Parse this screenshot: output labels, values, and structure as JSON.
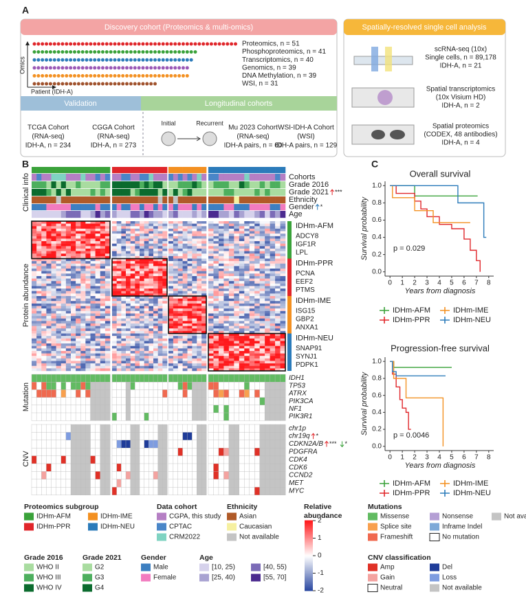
{
  "panel_labels": [
    "A",
    "B",
    "C"
  ],
  "discovery": {
    "title": "Discovery cohort (Proteomics & multi-omics)",
    "y_label": "Omics",
    "x_label": "Patient (IDH-A)",
    "rows": [
      {
        "label": "Proteomics, n = 51",
        "n": 51,
        "color": "#e0262a"
      },
      {
        "label": "Phosphoproteomics, n = 41",
        "n": 41,
        "color": "#3aa23a"
      },
      {
        "label": "Transcriptomics, n = 40",
        "n": 40,
        "color": "#2b7bba"
      },
      {
        "label": "Genomics, n = 39",
        "n": 39,
        "color": "#9b59b6"
      },
      {
        "label": "DNA Methylation, n = 39",
        "n": 39,
        "color": "#f39021"
      },
      {
        "label": "WSI, n = 31",
        "n": 31,
        "color": "#a0522d"
      }
    ]
  },
  "validation": {
    "title": "Validation",
    "cohorts": [
      [
        "TCGA Cohort",
        "(RNA-seq)",
        "IDH-A, n = 234"
      ],
      [
        "CGGA Cohort",
        "(RNA-seq)",
        "IDH-A, n = 273"
      ]
    ]
  },
  "longitudinal": {
    "title": "Longitudinal cohorts",
    "initial": "Initial",
    "recurrent": "Recurrent",
    "cohorts": [
      [
        "Mu 2023 Cohort",
        "(RNA-seq)",
        "IDH-A pairs, n = 60"
      ],
      [
        "WSI-IDH-A Cohort",
        "(WSI)",
        "IDH-A pairs, n = 129"
      ]
    ]
  },
  "spatial": {
    "title": "Spatially-resolved single cell analysis",
    "entries": [
      [
        "scRNA-seq (10x)",
        "Single cells, n = 89,178",
        "IDH-A, n = 21"
      ],
      [
        "Spatial transcriptomics",
        "(10x Visium HD)",
        "IDH-A, n = 2"
      ],
      [
        "Spatial proteomics",
        "(CODEX, 48 antibodies)",
        "IDH-A, n = 4"
      ]
    ]
  },
  "panel_b": {
    "clinical_title": "Clinical info",
    "protein_title": "Protein abundance",
    "mutation_title": "Mutation",
    "cnv_title": "CNV",
    "tracks": [
      {
        "label": "Cohorts"
      },
      {
        "label": "Grade 2016"
      },
      {
        "label": "Grade 2021",
        "up": "***",
        "up_color": "#e0262a"
      },
      {
        "label": "Ethnicity"
      },
      {
        "label": "Gender",
        "up": "*",
        "up_color": "#2b7bba"
      },
      {
        "label": "Age"
      }
    ],
    "subgroups": [
      {
        "name": "IDHm-AFM",
        "color": "#3aa23a",
        "genes": [
          "ADCY8",
          "IGF1R",
          "LPL"
        ]
      },
      {
        "name": "IDHm-PPR",
        "color": "#e0262a",
        "genes": [
          "PCNA",
          "EEF2",
          "PTMS"
        ]
      },
      {
        "name": "IDHm-IME",
        "color": "#f39021",
        "genes": [
          "ISG15",
          "GBP2",
          "ANXA1"
        ]
      },
      {
        "name": "IDHm-NEU",
        "color": "#2b7bba",
        "genes": [
          "SNAP91",
          "SYNJ1",
          "PDPK1"
        ]
      }
    ],
    "mutations": [
      {
        "label": "IDH1"
      },
      {
        "label": "TP53"
      },
      {
        "label": "ATRX"
      },
      {
        "label": "PIK3CA"
      },
      {
        "label": "NF1"
      },
      {
        "label": "PIK3R1"
      }
    ],
    "cnv": [
      {
        "label": "chr1p"
      },
      {
        "label": "chr19q",
        "up": "*",
        "up_color": "#e0262a"
      },
      {
        "label": "CDKN2A/B",
        "up": "***",
        "up_color": "#e0262a",
        "down": "*",
        "down_color": "#3aa23a"
      },
      {
        "label": "PDGFRA"
      },
      {
        "label": "CDK4"
      },
      {
        "label": "CDK6"
      },
      {
        "label": "CCND2"
      },
      {
        "label": "MET"
      },
      {
        "label": "MYC"
      }
    ]
  },
  "colorbar": {
    "title": [
      "Relative",
      "abundance"
    ],
    "ticks": [
      2,
      1,
      0,
      -1,
      -2
    ]
  },
  "legends": [
    {
      "title": "Proteomics subgroup",
      "items": [
        {
          "label": "IDHm-AFM",
          "color": "#3aa23a"
        },
        {
          "label": "IDHm-PPR",
          "color": "#e0262a"
        },
        {
          "label": "IDHm-IME",
          "color": "#f39021"
        },
        {
          "label": "IDHm-NEU",
          "color": "#2b7bba"
        }
      ]
    },
    {
      "title": "Data cohort",
      "items": [
        {
          "label": "CGPA, this study",
          "color": "#b57fc4"
        },
        {
          "label": "CPTAC",
          "color": "#4a86c8"
        },
        {
          "label": "CRM2022",
          "color": "#7fd3c2"
        }
      ]
    },
    {
      "title": "Ethnicity",
      "items": [
        {
          "label": "Asian",
          "color": "#b05a28"
        },
        {
          "label": "Caucasian",
          "color": "#f6f0a0"
        },
        {
          "label": "Not available",
          "color": "#c4c4c4"
        }
      ]
    },
    {
      "title": "Mutations",
      "items": [
        {
          "label": "Missense",
          "color": "#62bb62"
        },
        {
          "label": "Splice site",
          "color": "#f8a04e"
        },
        {
          "label": "Frameshift",
          "color": "#f0694f"
        },
        {
          "label": "Nonsense",
          "color": "#b49fd4"
        },
        {
          "label": "Inframe Indel",
          "color": "#7ea9d8"
        },
        {
          "label": "No mutation",
          "color": "#ffffff"
        },
        {
          "label": "Not available",
          "color": "#c4c4c4"
        }
      ]
    },
    {
      "title": "Grade 2016",
      "items": [
        {
          "label": "WHO II",
          "color": "#a9dca0"
        },
        {
          "label": "WHO III",
          "color": "#4daf5e"
        },
        {
          "label": "WHO IV",
          "color": "#0b6b2e"
        }
      ]
    },
    {
      "title": "Grade 2021",
      "items": [
        {
          "label": "G2",
          "color": "#a9dca0"
        },
        {
          "label": "G3",
          "color": "#4daf5e"
        },
        {
          "label": "G4",
          "color": "#0b6b2e"
        }
      ]
    },
    {
      "title": "Gender",
      "items": [
        {
          "label": "Male",
          "color": "#3d7fc1"
        },
        {
          "label": "Female",
          "color": "#f27bbf"
        }
      ]
    },
    {
      "title": "Age",
      "items": [
        {
          "label": "[10, 25)",
          "color": "#d6d2ec"
        },
        {
          "label": "[25, 40)",
          "color": "#a9a3d2"
        },
        {
          "label": "[40, 55)",
          "color": "#7b6bb7"
        },
        {
          "label": "[55, 70]",
          "color": "#4b2a8f"
        }
      ]
    },
    {
      "title": "CNV classification",
      "items": [
        {
          "label": "Amp",
          "color": "#e03127"
        },
        {
          "label": "Gain",
          "color": "#f4a3a0"
        },
        {
          "label": "Neutral",
          "color": "#ffffff"
        },
        {
          "label": "Del",
          "color": "#1f3c99"
        },
        {
          "label": "Loss",
          "color": "#7e9ce0"
        },
        {
          "label": "Not available",
          "color": "#c4c4c4"
        }
      ]
    }
  ],
  "chart_data": [
    {
      "type": "line",
      "step": true,
      "title": "Overall survival",
      "xlabel": "Years from diagnosis",
      "ylabel": "Survival probability",
      "annotation": "p = 0.029",
      "xlim": [
        -0.4,
        8.4
      ],
      "xticks": [
        0,
        1,
        2,
        3,
        4,
        5,
        6,
        7,
        8
      ],
      "ylim": [
        -0.05,
        1.05
      ],
      "yticks": [
        {
          "value": 0,
          "label": "0.0"
        },
        0.2,
        0.4,
        0.6,
        0.8,
        {
          "value": 1,
          "label": "1.0"
        }
      ],
      "series": [
        {
          "name": "IDHm-AFM",
          "color": "#3aa23a",
          "x": [
            0,
            2,
            7.1
          ],
          "values": [
            1,
            0.88,
            0.88
          ]
        },
        {
          "name": "IDHm-PPR",
          "color": "#e0262a",
          "x": [
            0,
            0.5,
            2,
            2.5,
            3,
            4,
            5,
            6,
            6.5,
            7,
            7.3
          ],
          "values": [
            1,
            0.91,
            0.82,
            0.73,
            0.64,
            0.55,
            0.5,
            0.38,
            0.25,
            0.13,
            0
          ]
        },
        {
          "name": "IDHm-IME",
          "color": "#f39021",
          "x": [
            0,
            0.2,
            2,
            3.5,
            6.5
          ],
          "values": [
            1,
            0.86,
            0.71,
            0.57,
            0.57
          ]
        },
        {
          "name": "IDHm-NEU",
          "color": "#2b7bba",
          "x": [
            0,
            5.5,
            7.6,
            7.8
          ],
          "values": [
            1,
            0.8,
            0.4,
            0.4
          ]
        }
      ]
    },
    {
      "type": "line",
      "step": true,
      "title": "Progression-free survival",
      "xlabel": "Years from diagnosis",
      "ylabel": "Survival probability",
      "annotation": "p = 0.0046",
      "xlim": [
        -0.4,
        8.4
      ],
      "xticks": [
        0,
        1,
        2,
        3,
        4,
        5,
        6,
        7,
        8
      ],
      "ylim": [
        -0.05,
        1.05
      ],
      "yticks": [
        {
          "value": 0,
          "label": "0.0"
        },
        0.2,
        0.4,
        0.6,
        0.8,
        {
          "value": 1,
          "label": "1.0"
        }
      ],
      "series": [
        {
          "name": "IDHm-AFM",
          "color": "#3aa23a",
          "x": [
            0,
            0.3,
            5
          ],
          "values": [
            1,
            0.93,
            0.93
          ]
        },
        {
          "name": "IDHm-PPR",
          "color": "#e0262a",
          "x": [
            0,
            0.2,
            0.5,
            0.8,
            1,
            1.3,
            1.5,
            1.7
          ],
          "values": [
            1,
            0.85,
            0.7,
            0.55,
            0.45,
            0.4,
            0.2,
            0.2
          ]
        },
        {
          "name": "IDHm-IME",
          "color": "#f39021",
          "x": [
            0,
            0.3,
            1.3,
            4.3
          ],
          "values": [
            1,
            0.8,
            0.57,
            0
          ]
        },
        {
          "name": "IDHm-NEU",
          "color": "#2b7bba",
          "x": [
            0,
            0.2,
            0.5,
            4.5
          ],
          "values": [
            1,
            0.88,
            0.83,
            0.83
          ]
        }
      ]
    }
  ]
}
